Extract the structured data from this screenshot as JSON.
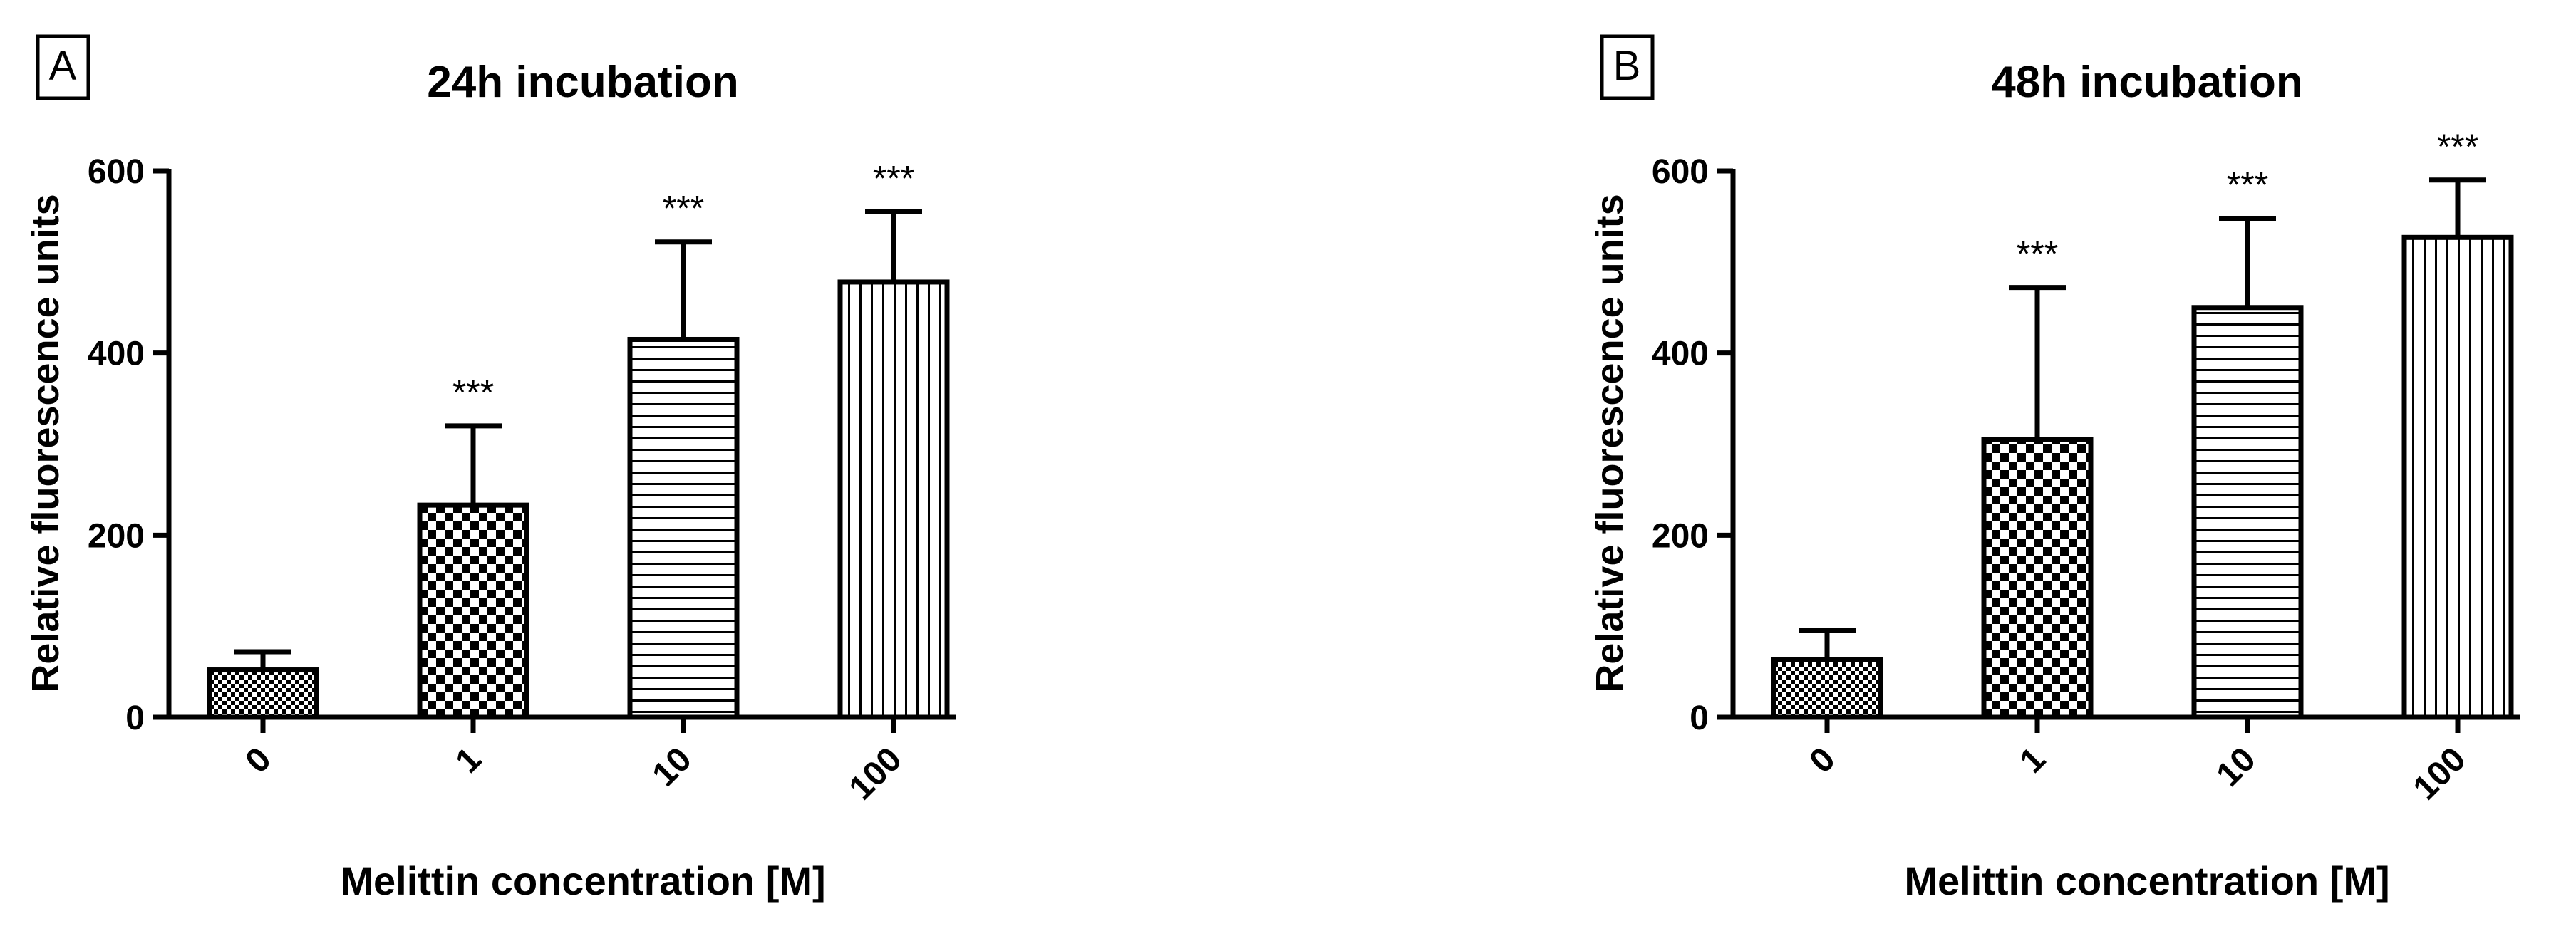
{
  "chart_data": [
    {
      "type": "bar",
      "panel": "A",
      "title": "24h incubation",
      "y_label": "Relative fluorescence units",
      "x_label": "Melittin concentration [M]",
      "categories": [
        "0",
        "1",
        "10",
        "100"
      ],
      "values": [
        52,
        233,
        415,
        478
      ],
      "errors": [
        20,
        87,
        107,
        77
      ],
      "annotations": [
        null,
        "***",
        "***",
        "***"
      ],
      "patterns": [
        "fine-check",
        "check",
        "horizontal",
        "vertical"
      ],
      "color": "#000000",
      "ylim": [
        0,
        600
      ],
      "yticks": [
        0,
        200,
        400,
        600
      ]
    },
    {
      "type": "bar",
      "panel": "B",
      "title": "48h incubation",
      "y_label": "Relative fluorescence units",
      "x_label": "Melittin concentration [M]",
      "categories": [
        "0",
        "1",
        "10",
        "100"
      ],
      "values": [
        63,
        305,
        450,
        527
      ],
      "errors": [
        32,
        167,
        98,
        63
      ],
      "annotations": [
        null,
        "***",
        "***",
        "***"
      ],
      "patterns": [
        "fine-check",
        "check",
        "horizontal",
        "vertical"
      ],
      "color": "#000000",
      "ylim": [
        0,
        600
      ],
      "yticks": [
        0,
        200,
        400,
        600
      ]
    }
  ]
}
